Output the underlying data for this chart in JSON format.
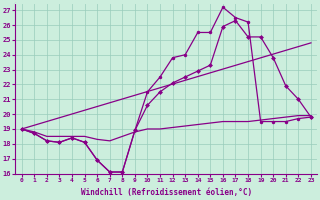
{
  "xlabel": "Windchill (Refroidissement éolien,°C)",
  "bg_color": "#cceedd",
  "grid_color": "#99ccbb",
  "line_color": "#880088",
  "xlim": [
    -0.5,
    23.5
  ],
  "ylim": [
    16,
    27.5
  ],
  "xticks": [
    0,
    1,
    2,
    3,
    4,
    5,
    6,
    7,
    8,
    9,
    10,
    11,
    12,
    13,
    14,
    15,
    16,
    17,
    18,
    19,
    20,
    21,
    22,
    23
  ],
  "yticks": [
    16,
    17,
    18,
    19,
    20,
    21,
    22,
    23,
    24,
    25,
    26,
    27
  ],
  "line_zigzag": {
    "x": [
      0,
      1,
      2,
      3,
      4,
      5,
      6,
      7,
      8,
      9,
      10,
      11,
      12,
      13,
      14,
      15,
      16,
      17,
      18,
      19,
      20,
      21,
      22,
      23
    ],
    "y": [
      19,
      18.7,
      18.2,
      18.1,
      18.4,
      18.1,
      16.9,
      16.1,
      16.1,
      18.9,
      20.6,
      21.5,
      22.1,
      22.5,
      22.9,
      23.3,
      25.9,
      26.3,
      25.2,
      25.2,
      23.8,
      21.9,
      21.0,
      19.8
    ]
  },
  "line_high": {
    "x": [
      0,
      1,
      2,
      3,
      4,
      5,
      6,
      7,
      8,
      9,
      10,
      11,
      12,
      13,
      14,
      15,
      16,
      17,
      18,
      19,
      20,
      21,
      22,
      23
    ],
    "y": [
      19,
      18.7,
      18.2,
      18.1,
      18.4,
      18.1,
      16.9,
      16.1,
      16.1,
      18.9,
      21.5,
      22.5,
      23.8,
      24.0,
      25.5,
      25.5,
      27.2,
      26.5,
      26.2,
      19.5,
      19.5,
      19.5,
      19.7,
      19.8
    ]
  },
  "line_diag": {
    "x": [
      0,
      23
    ],
    "y": [
      19.0,
      24.8
    ]
  },
  "line_flat": {
    "x": [
      0,
      1,
      2,
      3,
      4,
      5,
      6,
      7,
      8,
      9,
      10,
      11,
      12,
      13,
      14,
      15,
      16,
      17,
      18,
      19,
      20,
      21,
      22,
      23
    ],
    "y": [
      19.0,
      18.8,
      18.5,
      18.5,
      18.5,
      18.5,
      18.3,
      18.2,
      18.5,
      18.8,
      19.0,
      19.0,
      19.1,
      19.2,
      19.3,
      19.4,
      19.5,
      19.5,
      19.5,
      19.6,
      19.7,
      19.8,
      19.9,
      19.9
    ]
  }
}
